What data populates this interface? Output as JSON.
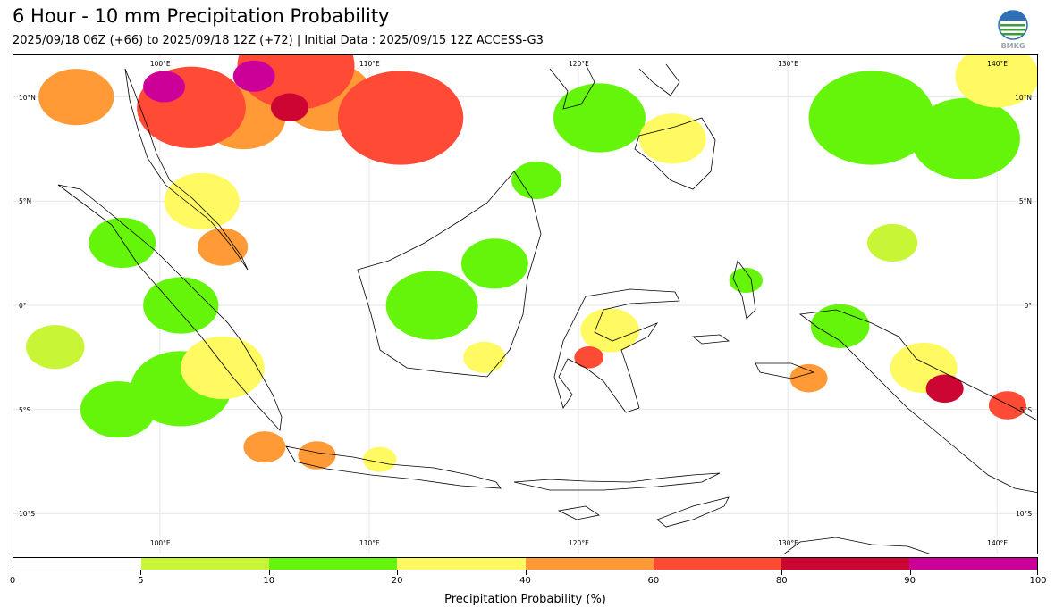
{
  "header": {
    "title": "6 Hour - 10 mm Precipitation Probability",
    "subtitle": "2025/09/18 06Z (+66) to 2025/09/18 12Z (+72) | Initial Data : 2025/09/15 12Z ACCESS-G3",
    "logo_text": "BMKG"
  },
  "map": {
    "region": "Indonesia / Maritime Continent",
    "lon_range": [
      93,
      142
    ],
    "lat_range": [
      -12,
      12
    ],
    "lon_labels": [
      "100°E",
      "110°E",
      "120°E",
      "130°E",
      "140°E"
    ],
    "lat_labels": [
      "10°N",
      "5°N",
      "0°",
      "5°S",
      "10°S"
    ],
    "gridlines": true,
    "colors": {
      "land_outline": "#000000",
      "gridline": "#e6e6e6"
    }
  },
  "colorbar": {
    "label": "Precipitation Probability (%)",
    "ticks": [
      "0",
      "5",
      "10",
      "20",
      "40",
      "60",
      "80",
      "90",
      "100"
    ],
    "colors": [
      "#ffffff",
      "#c8f536",
      "#64f50a",
      "#fff962",
      "#ff9a37",
      "#ff4a36",
      "#cc0533",
      "#cc0099"
    ]
  },
  "probability_blobs": [
    {
      "lon": 101.5,
      "lat": 9.5,
      "r": 2.6,
      "level": 5
    },
    {
      "lon": 106.5,
      "lat": 11.5,
      "r": 2.8,
      "level": 5
    },
    {
      "lon": 111.5,
      "lat": 9.0,
      "r": 3.0,
      "level": 5
    },
    {
      "lon": 96.0,
      "lat": 10.0,
      "r": 1.8,
      "level": 4
    },
    {
      "lon": 104.0,
      "lat": 9.0,
      "r": 2.0,
      "level": 4
    },
    {
      "lon": 108.0,
      "lat": 10.0,
      "r": 2.2,
      "level": 4
    },
    {
      "lon": 100.2,
      "lat": 10.5,
      "r": 1.0,
      "level": 7
    },
    {
      "lon": 104.5,
      "lat": 11.0,
      "r": 1.0,
      "level": 7
    },
    {
      "lon": 106.2,
      "lat": 9.5,
      "r": 0.9,
      "level": 6
    },
    {
      "lon": 102.0,
      "lat": 5.0,
      "r": 1.8,
      "level": 3
    },
    {
      "lon": 103.0,
      "lat": 2.8,
      "r": 1.2,
      "level": 4
    },
    {
      "lon": 98.2,
      "lat": 3.0,
      "r": 1.6,
      "level": 2
    },
    {
      "lon": 101.0,
      "lat": 0.0,
      "r": 1.8,
      "level": 2
    },
    {
      "lon": 103.0,
      "lat": -3.0,
      "r": 2.0,
      "level": 3
    },
    {
      "lon": 101.0,
      "lat": -4.0,
      "r": 2.4,
      "level": 2
    },
    {
      "lon": 105.0,
      "lat": -6.8,
      "r": 1.0,
      "level": 4
    },
    {
      "lon": 107.5,
      "lat": -7.2,
      "r": 0.9,
      "level": 4
    },
    {
      "lon": 110.5,
      "lat": -7.4,
      "r": 0.8,
      "level": 3
    },
    {
      "lon": 113.0,
      "lat": 0.0,
      "r": 2.2,
      "level": 2
    },
    {
      "lon": 116.0,
      "lat": 2.0,
      "r": 1.6,
      "level": 2
    },
    {
      "lon": 115.5,
      "lat": -2.5,
      "r": 1.0,
      "level": 3
    },
    {
      "lon": 121.0,
      "lat": 9.0,
      "r": 2.2,
      "level": 2
    },
    {
      "lon": 124.5,
      "lat": 8.0,
      "r": 1.6,
      "level": 3
    },
    {
      "lon": 121.5,
      "lat": -1.2,
      "r": 1.4,
      "level": 3
    },
    {
      "lon": 120.5,
      "lat": -2.5,
      "r": 0.7,
      "level": 5
    },
    {
      "lon": 128.0,
      "lat": 1.2,
      "r": 0.8,
      "level": 2
    },
    {
      "lon": 132.5,
      "lat": -1.0,
      "r": 1.4,
      "level": 2
    },
    {
      "lon": 131.0,
      "lat": -3.5,
      "r": 0.9,
      "level": 4
    },
    {
      "lon": 136.5,
      "lat": -3.0,
      "r": 1.6,
      "level": 3
    },
    {
      "lon": 137.5,
      "lat": -4.0,
      "r": 0.9,
      "level": 6
    },
    {
      "lon": 140.5,
      "lat": -4.8,
      "r": 0.9,
      "level": 5
    },
    {
      "lon": 134.0,
      "lat": 9.0,
      "r": 3.0,
      "level": 2
    },
    {
      "lon": 138.5,
      "lat": 8.0,
      "r": 2.6,
      "level": 2
    },
    {
      "lon": 140.0,
      "lat": 11.0,
      "r": 2.0,
      "level": 3
    },
    {
      "lon": 95.0,
      "lat": -2.0,
      "r": 1.4,
      "level": 1
    },
    {
      "lon": 98.0,
      "lat": -5.0,
      "r": 1.8,
      "level": 2
    },
    {
      "lon": 135.0,
      "lat": 3.0,
      "r": 1.2,
      "level": 1
    },
    {
      "lon": 118.0,
      "lat": 6.0,
      "r": 1.2,
      "level": 2
    }
  ]
}
